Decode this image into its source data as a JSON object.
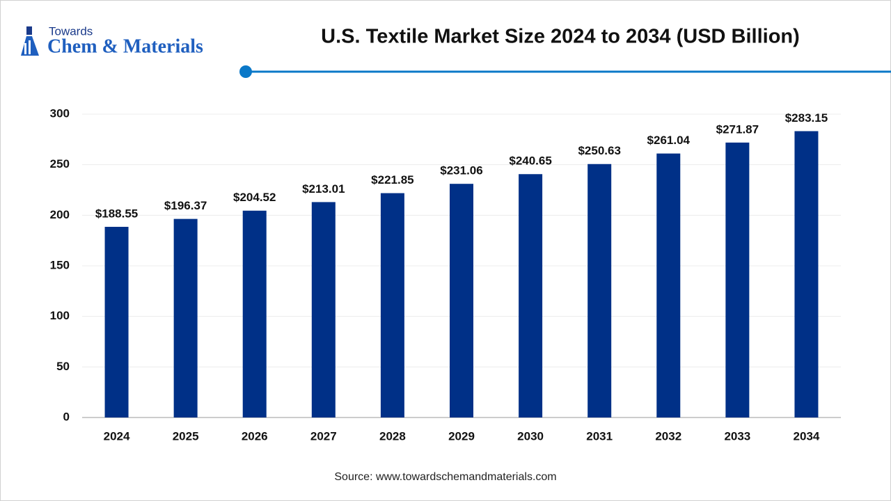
{
  "header": {
    "logo_small": "Towards",
    "logo_large": "Chem & Materials"
  },
  "footer": {
    "source": "Source: www.towardschemandmaterials.com"
  },
  "chart_data": {
    "type": "bar",
    "title": "U.S. Textile Market Size 2024 to 2034 (USD Billion)",
    "categories": [
      "2024",
      "2025",
      "2026",
      "2027",
      "2028",
      "2029",
      "2030",
      "2031",
      "2032",
      "2033",
      "2034"
    ],
    "values": [
      188.55,
      196.37,
      204.52,
      213.01,
      221.85,
      231.06,
      240.65,
      250.63,
      261.04,
      271.87,
      283.15
    ],
    "value_labels": [
      "$188.55",
      "$196.37",
      "$204.52",
      "$213.01",
      "$221.85",
      "$231.06",
      "$240.65",
      "$250.63",
      "$261.04",
      "$271.87",
      "$283.15"
    ],
    "color": "#003087",
    "ylim": [
      0,
      300
    ],
    "yticks": [
      0,
      50,
      100,
      150,
      200,
      250,
      300
    ],
    "grid": true
  }
}
